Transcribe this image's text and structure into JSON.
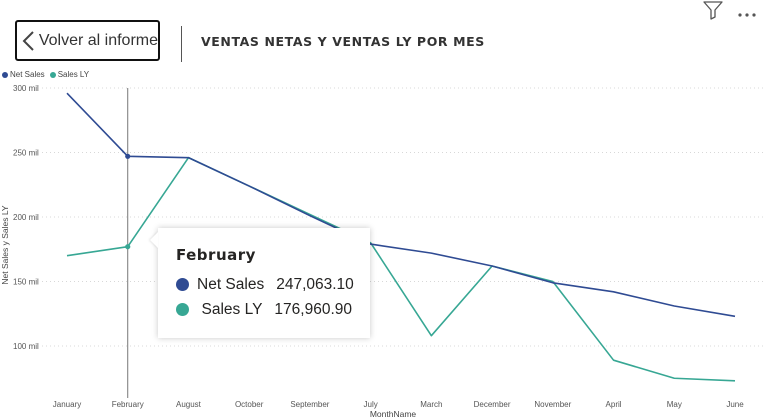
{
  "header": {
    "back_label": "Volver al informe",
    "title": "VENTAS NETAS Y VENTAS LY POR MES"
  },
  "icons": {
    "back": "chevron-left-icon",
    "filter": "filter-icon",
    "more": "more-options-icon"
  },
  "colors": {
    "net_sales": "#2f4b93",
    "sales_ly": "#37a794"
  },
  "legend": [
    {
      "label": "Net Sales",
      "color": "#2f4b93"
    },
    {
      "label": "Sales LY",
      "color": "#37a794"
    }
  ],
  "tooltip": {
    "title": "February",
    "rows": [
      {
        "name": "Net Sales",
        "value": "247,063.10",
        "color": "#2f4b93"
      },
      {
        "name": "Sales LY",
        "value": "176,960.90",
        "color": "#37a794"
      }
    ]
  },
  "chart_data": {
    "type": "line",
    "xlabel": "MonthName",
    "ylabel": "Net Sales y Sales LY",
    "categories": [
      "January",
      "February",
      "August",
      "October",
      "September",
      "July",
      "March",
      "December",
      "November",
      "April",
      "May",
      "June"
    ],
    "y_ticks": [
      {
        "value": 100000,
        "label": "100 mil"
      },
      {
        "value": 150000,
        "label": "150 mil"
      },
      {
        "value": 200000,
        "label": "200 mil"
      },
      {
        "value": 250000,
        "label": "250 mil"
      },
      {
        "value": 300000,
        "label": "300 mil"
      }
    ],
    "ylim": [
      70000,
      300000
    ],
    "grid": true,
    "legend_position": "top-left",
    "highlighted_category": "February",
    "series": [
      {
        "name": "Net Sales",
        "color": "#2f4b93",
        "values": [
          296000,
          247063.1,
          246000,
          224000,
          201000,
          179000,
          172000,
          162000,
          149000,
          142000,
          131000,
          123000
        ]
      },
      {
        "name": "Sales LY",
        "color": "#37a794",
        "values": [
          170000,
          176960.9,
          246000,
          224000,
          202000,
          180000,
          108000,
          162000,
          150000,
          89000,
          75000,
          73000
        ]
      }
    ]
  }
}
